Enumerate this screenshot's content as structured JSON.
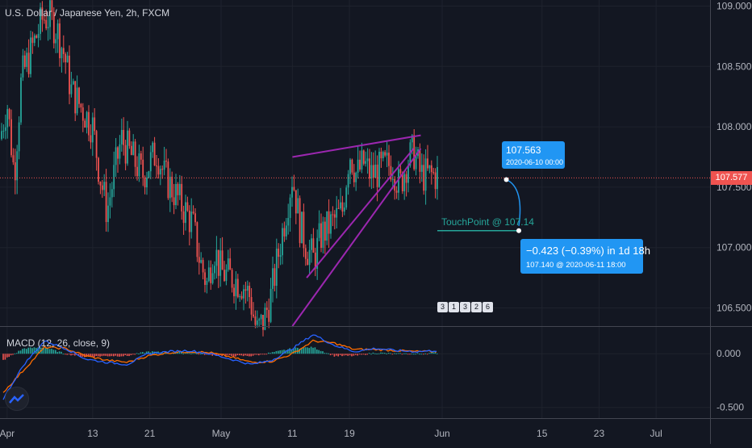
{
  "title": "U.S. Dollar / Japanese Yen, 2h, FXCM",
  "macd_label": "MACD (12, 26, close, 9)",
  "current_price": "107.577",
  "callout_start": {
    "price": "107.563",
    "time": "2020-06-10 00:00"
  },
  "callout_end": {
    "change": "−0.423 (−0.39%) in 1d 18h",
    "detail": "107.140 @ 2020-06-11  18:00"
  },
  "touch_label": "TouchPoint @ 107.14",
  "event_badges": [
    "3",
    "1",
    "3",
    "2",
    "6"
  ],
  "colors": {
    "background": "#131722",
    "up_candle": "#26a69a",
    "down_candle": "#ef5350",
    "trendline": "#9c27b0",
    "macd_line": "#2962ff",
    "signal_line": "#ff6d00",
    "callout": "#2196f3",
    "price_line": "#ef5350"
  },
  "chart_data": [
    {
      "type": "candlestick",
      "title": "U.S. Dollar / Japanese Yen, 2h, FXCM",
      "ylim": [
        106.35,
        109.05
      ],
      "y_ticks": [
        "109.000",
        "108.500",
        "108.000",
        "107.500",
        "107.000",
        "106.500"
      ],
      "x_ticks": [
        "Apr",
        "13",
        "21",
        "May",
        "11",
        "19",
        "Jun",
        "15",
        "23",
        "Jul"
      ],
      "last_price": 107.577,
      "projection": {
        "from": {
          "price": 107.563,
          "time": "2020-06-10 00:00"
        },
        "to": {
          "price": 107.14,
          "time": "2020-06-11 18:00"
        },
        "change": -0.423,
        "change_pct": -0.39
      },
      "touchpoint": 107.14,
      "price_path": [
        [
          "2020-03-31",
          107.9
        ],
        [
          "2020-04-01",
          108.2
        ],
        [
          "2020-04-02",
          107.6
        ],
        [
          "2020-04-03",
          108.4
        ],
        [
          "2020-04-06",
          108.9
        ],
        [
          "2020-04-07",
          108.9
        ],
        [
          "2020-04-08",
          108.8
        ],
        [
          "2020-04-09",
          108.6
        ],
        [
          "2020-04-10",
          108.3
        ],
        [
          "2020-04-13",
          108.0
        ],
        [
          "2020-04-14",
          107.6
        ],
        [
          "2020-04-15",
          107.3
        ],
        [
          "2020-04-16",
          107.6
        ],
        [
          "2020-04-17",
          107.9
        ],
        [
          "2020-04-20",
          107.6
        ],
        [
          "2020-04-21",
          107.7
        ],
        [
          "2020-04-22",
          107.8
        ],
        [
          "2020-04-23",
          107.6
        ],
        [
          "2020-04-24",
          107.5
        ],
        [
          "2020-04-27",
          107.2
        ],
        [
          "2020-04-28",
          106.9
        ],
        [
          "2020-04-29",
          106.7
        ],
        [
          "2020-04-30",
          107.0
        ],
        [
          "2020-05-01",
          106.8
        ],
        [
          "2020-05-04",
          106.7
        ],
        [
          "2020-05-05",
          106.6
        ],
        [
          "2020-05-06",
          106.3
        ],
        [
          "2020-05-07",
          106.4
        ],
        [
          "2020-05-08",
          106.6
        ],
        [
          "2020-05-11",
          107.6
        ],
        [
          "2020-05-12",
          107.2
        ],
        [
          "2020-05-13",
          107.0
        ],
        [
          "2020-05-14",
          106.9
        ],
        [
          "2020-05-15",
          107.1
        ],
        [
          "2020-05-18",
          107.3
        ],
        [
          "2020-05-19",
          107.8
        ],
        [
          "2020-05-20",
          107.6
        ],
        [
          "2020-05-21",
          107.7
        ],
        [
          "2020-05-22",
          107.6
        ],
        [
          "2020-05-25",
          107.7
        ],
        [
          "2020-05-26",
          107.5
        ],
        [
          "2020-05-27",
          107.7
        ],
        [
          "2020-05-28",
          107.8
        ],
        [
          "2020-05-29",
          107.6
        ]
      ],
      "trendlines": [
        {
          "from": [
            "2020-05-11",
            107.75
          ],
          "to": [
            "2020-05-29",
            107.93
          ]
        },
        {
          "from": [
            "2020-05-11",
            106.35
          ],
          "to": [
            "2020-05-29",
            107.82
          ]
        },
        {
          "from": [
            "2020-05-13",
            106.75
          ],
          "to": [
            "2020-05-28",
            107.82
          ]
        }
      ]
    },
    {
      "type": "line",
      "title": "MACD (12, 26, close, 9)",
      "ylim": [
        -0.6,
        0.25
      ],
      "y_ticks": [
        "0.000",
        "-0.500"
      ],
      "series": [
        {
          "name": "MACD",
          "values": [
            -0.42,
            -0.1,
            0.12,
            0.05,
            -0.05,
            -0.08,
            -0.1,
            0.0,
            0.02,
            0.03,
            0.0,
            -0.05,
            -0.1,
            -0.06,
            0.05,
            0.18,
            0.08,
            0.02,
            0.05,
            0.03,
            0.02,
            0.03
          ]
        },
        {
          "name": "Signal",
          "values": [
            -0.36,
            -0.15,
            0.06,
            0.05,
            -0.02,
            -0.06,
            -0.08,
            -0.02,
            0.01,
            0.02,
            0.01,
            -0.03,
            -0.08,
            -0.07,
            0.0,
            0.12,
            0.1,
            0.04,
            0.04,
            0.03,
            0.02,
            0.02
          ]
        }
      ]
    }
  ]
}
